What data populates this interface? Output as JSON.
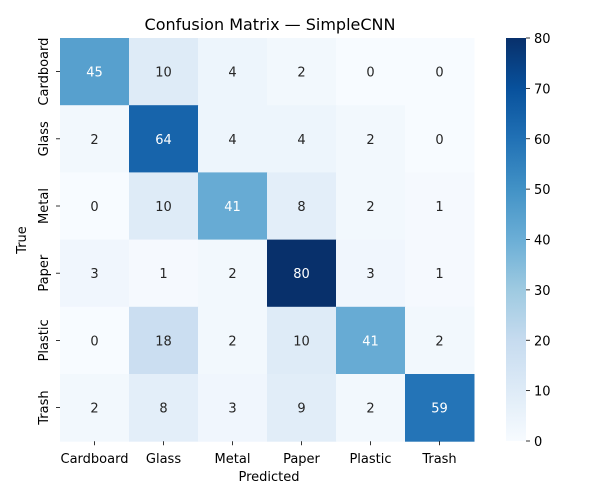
{
  "chart_data": {
    "type": "heatmap",
    "title": "Confusion Matrix — SimpleCNN",
    "xlabel": "Predicted",
    "ylabel": "True",
    "x_categories": [
      "Cardboard",
      "Glass",
      "Metal",
      "Paper",
      "Plastic",
      "Trash"
    ],
    "y_categories": [
      "Cardboard",
      "Glass",
      "Metal",
      "Paper",
      "Plastic",
      "Trash"
    ],
    "values": [
      [
        45,
        10,
        4,
        2,
        0,
        0
      ],
      [
        2,
        64,
        4,
        4,
        2,
        0
      ],
      [
        0,
        10,
        41,
        8,
        2,
        1
      ],
      [
        3,
        1,
        2,
        80,
        3,
        1
      ],
      [
        0,
        18,
        2,
        10,
        41,
        2
      ],
      [
        2,
        8,
        3,
        9,
        2,
        59
      ]
    ],
    "colorbar": {
      "range": [
        0,
        80
      ],
      "ticks": [
        0,
        10,
        20,
        30,
        40,
        50,
        60,
        70,
        80
      ],
      "colormap": "Blues"
    },
    "grid": false
  }
}
